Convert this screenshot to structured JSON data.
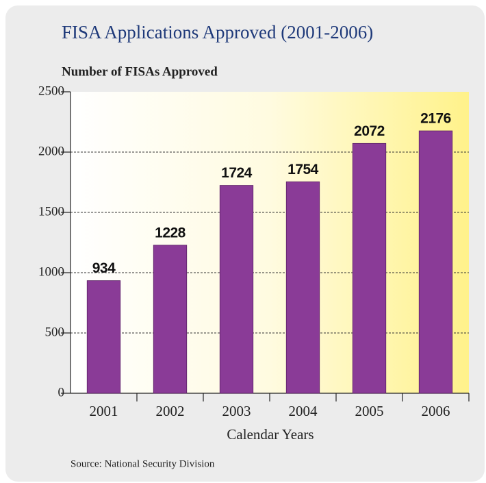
{
  "chart_data": {
    "type": "bar",
    "title": "FISA Applications Approved (2001-2006)",
    "y_label": "Number of FISAs Approved",
    "x_label": "Calendar Years",
    "source": "Source: National Security Division",
    "categories": [
      "2001",
      "2002",
      "2003",
      "2004",
      "2005",
      "2006"
    ],
    "values": [
      934,
      1228,
      1724,
      1754,
      2072,
      2176
    ],
    "color": "#8a3b97",
    "ylim": [
      0,
      2500
    ],
    "yticks": [
      0,
      500,
      1000,
      1500,
      2000,
      2500
    ],
    "grid": true
  }
}
